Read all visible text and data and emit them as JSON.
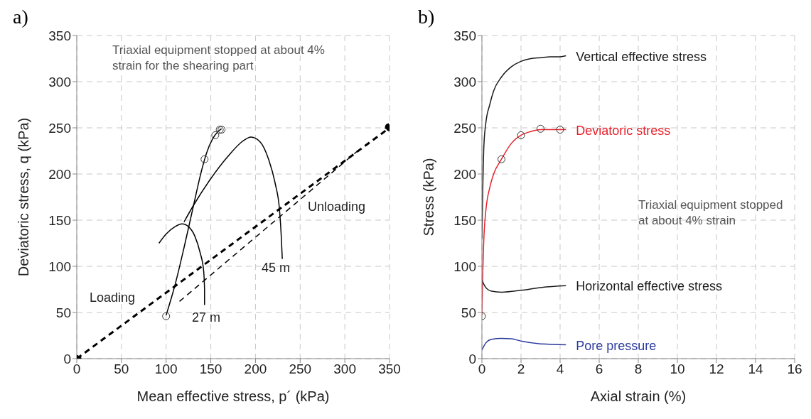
{
  "chart_data": [
    {
      "type": "line",
      "title": "a)",
      "xlabel": "Mean effective stress, p´ (kPa)",
      "ylabel": "Deviatoric stress, q (kPa)",
      "xlim": [
        0,
        350
      ],
      "xticks": [
        0,
        50,
        100,
        150,
        200,
        250,
        300,
        350
      ],
      "ylim": [
        0,
        350
      ],
      "yticks": [
        0,
        50,
        100,
        150,
        200,
        250,
        300,
        350
      ],
      "grid": true,
      "legend": false,
      "annotations": [
        "Triaxial equipment stopped at about 4% strain for the shearing part",
        "Loading",
        "Unloading",
        "27 m",
        "45 m"
      ],
      "series": [
        {
          "color": "#000000",
          "line_style": "dashed",
          "marker": "circle",
          "x": [
            0,
            350
          ],
          "values": [
            0,
            250
          ]
        },
        {
          "color": "#000000",
          "line_style": "dashed",
          "marker": "none",
          "x": [
            115,
            318
          ],
          "values": [
            62,
            228
          ]
        },
        {
          "color": "#000000",
          "line_style": "solid",
          "marker": "none",
          "x": [
            100,
            110,
            120,
            130,
            140,
            145,
            152,
            158,
            162
          ],
          "values": [
            47,
            80,
            120,
            163,
            205,
            222,
            238,
            246,
            249
          ]
        },
        {
          "color": "#000000",
          "line_style": "solid",
          "marker": "none",
          "x": [
            92,
            100,
            110,
            118,
            125,
            132,
            138,
            142,
            143,
            143
          ],
          "values": [
            125,
            135,
            143,
            146,
            143,
            133,
            115,
            95,
            75,
            58
          ]
        },
        {
          "color": "#000000",
          "line_style": "solid",
          "marker": "none",
          "x": [
            120,
            130,
            150,
            170,
            185,
            195,
            205,
            215,
            222,
            227,
            229,
            230
          ],
          "values": [
            148,
            165,
            195,
            220,
            235,
            240,
            235,
            215,
            190,
            160,
            130,
            108
          ]
        },
        {
          "type": "scatter",
          "color": "#333333",
          "marker": "circle",
          "x": [
            100,
            143,
            155,
            160,
            162
          ],
          "values": [
            46,
            216,
            242,
            248,
            248
          ]
        }
      ]
    },
    {
      "type": "line",
      "title": "b)",
      "xlabel": "Axial strain (%)",
      "ylabel": "Stress (kPa)",
      "xlim": [
        0,
        16
      ],
      "xticks": [
        0,
        2,
        4,
        6,
        8,
        10,
        12,
        14,
        16
      ],
      "ylim": [
        0,
        350
      ],
      "yticks": [
        0,
        50,
        100,
        150,
        200,
        250,
        300,
        350
      ],
      "grid": true,
      "legend": false,
      "annotations": [
        "Triaxial equipment stopped at about 4% strain"
      ],
      "series": [
        {
          "name": "Vertical effective stress",
          "color": "#1a1a1a",
          "line_style": "solid",
          "marker": "none",
          "x": [
            0,
            0.05,
            0.1,
            0.2,
            0.4,
            0.6,
            1,
            1.5,
            2,
            2.5,
            3,
            3.5,
            4,
            4.3
          ],
          "values": [
            130,
            190,
            230,
            255,
            275,
            290,
            305,
            316,
            322,
            325,
            326,
            327,
            327,
            328
          ]
        },
        {
          "name": "Deviatoric stress",
          "color": "#e8202a",
          "line_style": "solid",
          "marker": "none",
          "x": [
            0,
            0.03,
            0.1,
            0.2,
            0.4,
            0.6,
            1,
            1.5,
            2,
            2.5,
            3,
            3.5,
            4,
            4.3
          ],
          "values": [
            47,
            80,
            130,
            160,
            185,
            200,
            216,
            233,
            242,
            246,
            248,
            248,
            248,
            248
          ]
        },
        {
          "name": "Horizontal effective stress",
          "color": "#1a1a1a",
          "line_style": "solid",
          "marker": "none",
          "x": [
            0,
            0.2,
            0.5,
            1,
            2,
            3,
            4.3
          ],
          "values": [
            85,
            77,
            73,
            72,
            74,
            77,
            79
          ]
        },
        {
          "name": "Pore pressure",
          "color": "#2b3a9e",
          "line_style": "solid",
          "marker": "none",
          "x": [
            0,
            0.2,
            0.5,
            1,
            1.5,
            2,
            3,
            4.3
          ],
          "values": [
            9,
            17,
            21,
            22,
            21.5,
            19,
            16,
            15
          ]
        },
        {
          "type": "scatter",
          "color": "#333333",
          "marker": "circle",
          "x": [
            0,
            1,
            2,
            3,
            4
          ],
          "values": [
            46,
            216,
            242,
            249,
            248
          ]
        }
      ]
    }
  ]
}
